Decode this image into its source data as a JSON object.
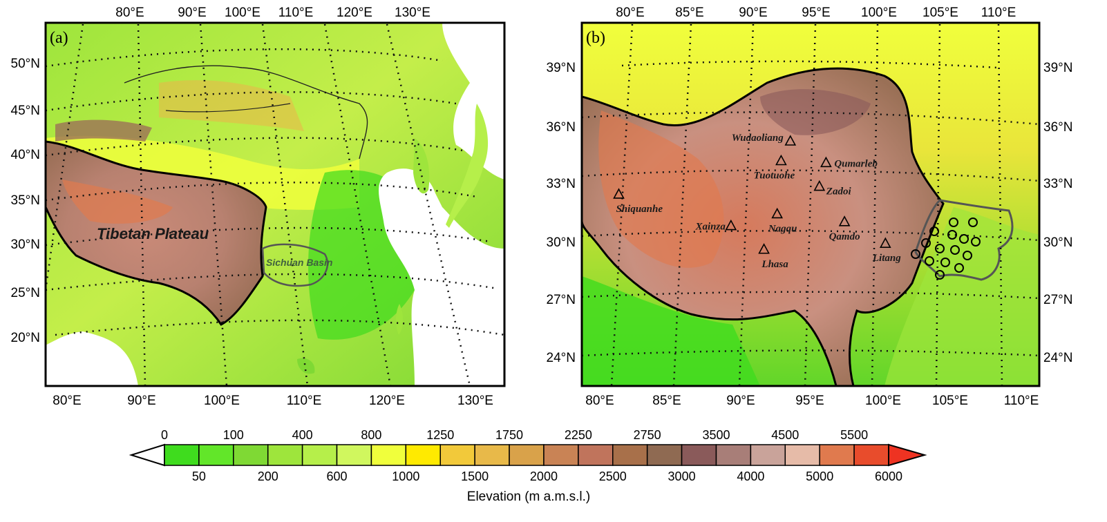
{
  "panel_a": {
    "label": "(a)",
    "lon_top": [
      "80°E",
      "90°E",
      "100°E",
      "110°E",
      "120°E",
      "130°E"
    ],
    "lon_bottom": [
      "80°E",
      "90°E",
      "100°E",
      "110°E",
      "120°E",
      "130°E"
    ],
    "lat_left": [
      "50°N",
      "45°N",
      "40°N",
      "35°N",
      "30°N",
      "25°N",
      "20°N"
    ],
    "regions": [
      {
        "name": "Tibetan Plateau"
      },
      {
        "name": "Sichuan Basin"
      }
    ]
  },
  "panel_b": {
    "label": "(b)",
    "lon_top": [
      "80°E",
      "85°E",
      "90°E",
      "95°E",
      "100°E",
      "105°E",
      "110°E"
    ],
    "lon_bottom": [
      "80°E",
      "85°E",
      "90°E",
      "95°E",
      "100°E",
      "105°E",
      "110°E"
    ],
    "lat_left": [
      "39°N",
      "36°N",
      "33°N",
      "30°N",
      "27°N",
      "24°N"
    ],
    "lat_right": [
      "39°N",
      "36°N",
      "33°N",
      "30°N",
      "27°N",
      "24°N"
    ],
    "stations": [
      {
        "name": "Shiquanhe",
        "lon": 80.1,
        "lat": 32.5
      },
      {
        "name": "Wudaoliang",
        "lon": 93.1,
        "lat": 35.2
      },
      {
        "name": "Tuotuohe",
        "lon": 92.4,
        "lat": 34.2
      },
      {
        "name": "Qumarleb",
        "lon": 95.8,
        "lat": 34.1
      },
      {
        "name": "Zadoi",
        "lon": 95.3,
        "lat": 32.9
      },
      {
        "name": "Xainza",
        "lon": 88.6,
        "lat": 30.9
      },
      {
        "name": "Nagqu",
        "lon": 92.1,
        "lat": 31.5
      },
      {
        "name": "Qamdo",
        "lon": 97.2,
        "lat": 31.1
      },
      {
        "name": "Lhasa",
        "lon": 91.1,
        "lat": 29.7
      },
      {
        "name": "Litang",
        "lon": 100.3,
        "lat": 30.0
      }
    ]
  },
  "colorbar": {
    "title": "Elevation (m a.m.s.l.)",
    "ticks_top": [
      "0",
      "100",
      "400",
      "800",
      "1250",
      "1750",
      "2250",
      "2750",
      "3500",
      "4500",
      "5500"
    ],
    "ticks_bottom": [
      "50",
      "200",
      "600",
      "1000",
      "1500",
      "2000",
      "2500",
      "3000",
      "4000",
      "5000",
      "6000"
    ],
    "colors": [
      "#ffffff",
      "#3fdc1e",
      "#62e629",
      "#7fd934",
      "#9ee53c",
      "#b6ef4a",
      "#d0f75e",
      "#f0ff3c",
      "#ffea00",
      "#f2c93a",
      "#e8b949",
      "#d9a24a",
      "#c98355",
      "#c0745c",
      "#a8704a",
      "#8f6a52",
      "#8a5a5a",
      "#a87e78",
      "#c9a39a",
      "#e6bba8",
      "#e07a4e",
      "#e84c2c",
      "#ee3322"
    ]
  }
}
